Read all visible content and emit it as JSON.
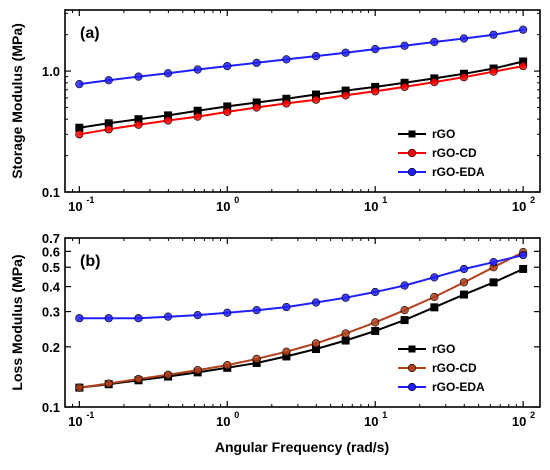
{
  "figure": {
    "xlabel": "Angular Frequency (rad/s)"
  },
  "chart_data": [
    {
      "type": "line",
      "panel_label": "(a)",
      "xlabel": "",
      "ylabel": "Storage Modulus (MPa)",
      "xscale": "log",
      "yscale": "log",
      "xlim": [
        0.08,
        130
      ],
      "ylim": [
        0.1,
        3.2
      ],
      "x_ticks": [
        {
          "v": 0.1,
          "label": "10"
        },
        {
          "v": 1,
          "label": "10"
        },
        {
          "v": 10,
          "label": "10"
        },
        {
          "v": 100,
          "label": "10"
        }
      ],
      "x_tick_exponents": [
        "-1",
        "0",
        "1",
        "2"
      ],
      "y_ticks": [
        {
          "v": 0.1,
          "label": "0.1"
        },
        {
          "v": 1,
          "label": "1.0"
        }
      ],
      "legend_position": "bottom-right",
      "grid": false,
      "x": [
        0.1,
        0.158,
        0.251,
        0.398,
        0.631,
        1,
        1.58,
        2.51,
        3.98,
        6.31,
        10,
        15.8,
        25.1,
        39.8,
        63.1,
        100
      ],
      "series": [
        {
          "name": "rGO",
          "color": "#000000",
          "marker": "square",
          "values": [
            0.34,
            0.37,
            0.4,
            0.43,
            0.47,
            0.51,
            0.55,
            0.59,
            0.64,
            0.69,
            0.74,
            0.8,
            0.87,
            0.95,
            1.05,
            1.2
          ]
        },
        {
          "name": "rGO-CD",
          "color": "#ff0000",
          "marker": "circle",
          "values": [
            0.3,
            0.33,
            0.36,
            0.39,
            0.42,
            0.46,
            0.5,
            0.54,
            0.58,
            0.63,
            0.68,
            0.74,
            0.81,
            0.89,
            0.99,
            1.1
          ]
        },
        {
          "name": "rGO-EDA",
          "color": "#2020ff",
          "marker": "circle",
          "values": [
            0.78,
            0.84,
            0.9,
            0.96,
            1.03,
            1.1,
            1.17,
            1.25,
            1.33,
            1.42,
            1.52,
            1.62,
            1.74,
            1.86,
            2.0,
            2.2
          ]
        }
      ]
    },
    {
      "type": "line",
      "panel_label": "(b)",
      "xlabel": "Angular Frequency (rad/s)",
      "ylabel": "Loss Modulus (MPa)",
      "xscale": "log",
      "yscale": "log",
      "xlim": [
        0.08,
        130
      ],
      "ylim": [
        0.1,
        0.7
      ],
      "x_ticks": [
        {
          "v": 0.1,
          "label": "10"
        },
        {
          "v": 1,
          "label": "10"
        },
        {
          "v": 10,
          "label": "10"
        },
        {
          "v": 100,
          "label": "10"
        }
      ],
      "x_tick_exponents": [
        "-1",
        "0",
        "1",
        "2"
      ],
      "y_ticks": [
        {
          "v": 0.1,
          "label": "0.1"
        },
        {
          "v": 0.2,
          "label": "0.2"
        },
        {
          "v": 0.3,
          "label": "0.3"
        },
        {
          "v": 0.4,
          "label": "0.4"
        },
        {
          "v": 0.5,
          "label": "0.5"
        },
        {
          "v": 0.6,
          "label": "0.6"
        },
        {
          "v": 0.7,
          "label": "0.7"
        }
      ],
      "legend_position": "bottom-right",
      "grid": false,
      "x": [
        0.1,
        0.158,
        0.251,
        0.398,
        0.631,
        1,
        1.58,
        2.51,
        3.98,
        6.31,
        10,
        15.8,
        25.1,
        39.8,
        63.1,
        100
      ],
      "series": [
        {
          "name": "rGO",
          "color": "#000000",
          "marker": "square",
          "values": [
            0.125,
            0.13,
            0.136,
            0.142,
            0.149,
            0.157,
            0.166,
            0.179,
            0.195,
            0.215,
            0.24,
            0.272,
            0.315,
            0.365,
            0.42,
            0.49
          ]
        },
        {
          "name": "rGO-CD",
          "color": "#b2401a",
          "marker": "circle",
          "values": [
            0.125,
            0.131,
            0.138,
            0.145,
            0.153,
            0.162,
            0.174,
            0.189,
            0.208,
            0.233,
            0.265,
            0.305,
            0.355,
            0.42,
            0.5,
            0.595
          ]
        },
        {
          "name": "rGO-EDA",
          "color": "#2020ff",
          "marker": "circle",
          "values": [
            0.278,
            0.278,
            0.278,
            0.283,
            0.288,
            0.296,
            0.305,
            0.316,
            0.333,
            0.352,
            0.376,
            0.405,
            0.445,
            0.49,
            0.53,
            0.575
          ]
        }
      ]
    }
  ]
}
